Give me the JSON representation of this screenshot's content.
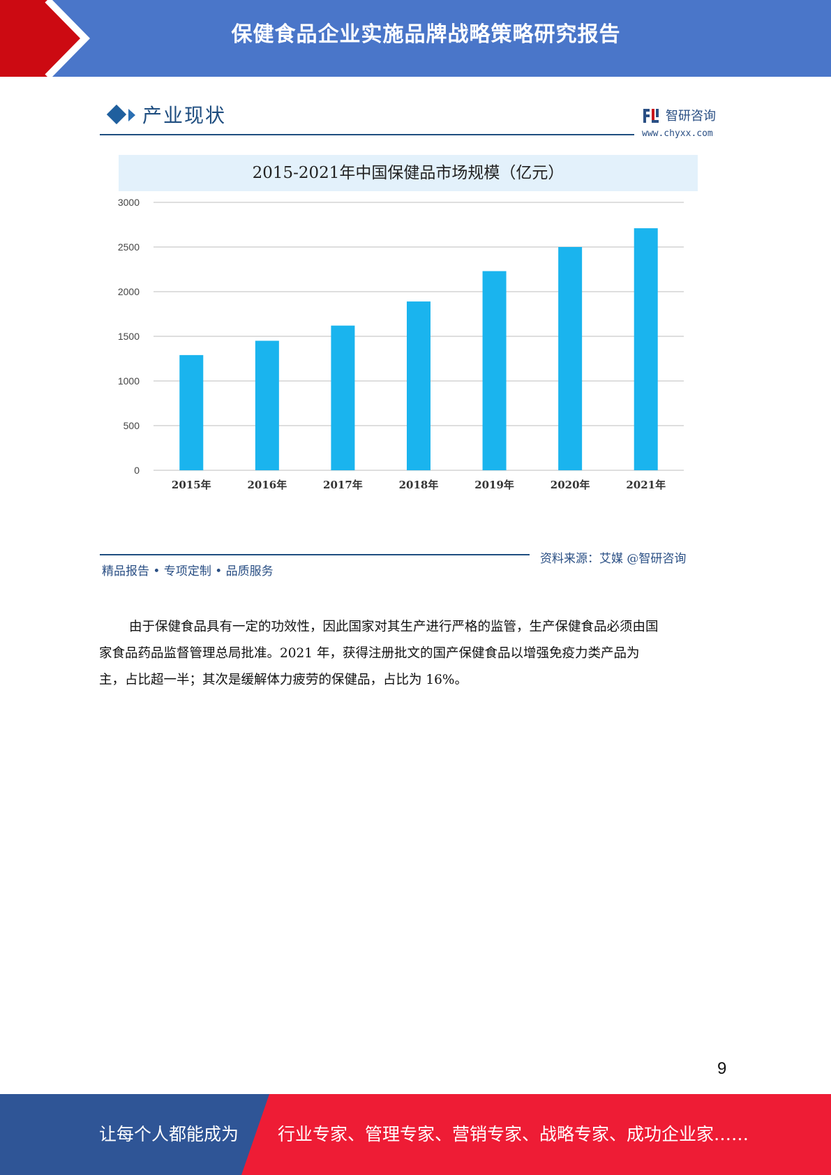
{
  "header": {
    "title": "保健食品企业实施品牌战略策略研究报告"
  },
  "figure": {
    "section_title": "产业现状",
    "brand_name": "智研咨询",
    "brand_url": "www.chyxx.com",
    "footer_left": "精品报告 • 专项定制 • 品质服务",
    "source": "资料来源：艾媒 @智研咨询"
  },
  "chart_data": {
    "type": "bar",
    "title": "2015-2021年中国保健品市场规模（亿元）",
    "categories": [
      "2015年",
      "2016年",
      "2017年",
      "2018年",
      "2019年",
      "2020年",
      "2021年"
    ],
    "values": [
      1290,
      1450,
      1620,
      1890,
      2230,
      2500,
      2710
    ],
    "ylim": [
      0,
      3000
    ],
    "yticks": [
      "0",
      "500",
      "1000",
      "1500",
      "2000",
      "2500",
      "3000"
    ],
    "grid": true,
    "legend": "none",
    "bar_color": "#1ab4ee"
  },
  "body": {
    "lines": [
      "由于保健食品具有一定的功效性，因此国家对其生产进行严格的监管，生产保健食品必须由国",
      "家食品药品监督管理总局批准。2021 年，获得注册批文的国产保健食品以增强免疫力类产品为",
      "主，占比超一半；其次是缓解体力疲劳的保健品，占比为 16%。"
    ]
  },
  "page_number": "9",
  "footer": {
    "left": "让每个人都能成为",
    "right": "行业专家、管理专家、营销专家、战略专家、成功企业家……"
  },
  "colors": {
    "header_blue": "#4a76c9",
    "header_red": "#cc0a12",
    "footer_blue": "#2f5596",
    "footer_red": "#ee1c35"
  }
}
